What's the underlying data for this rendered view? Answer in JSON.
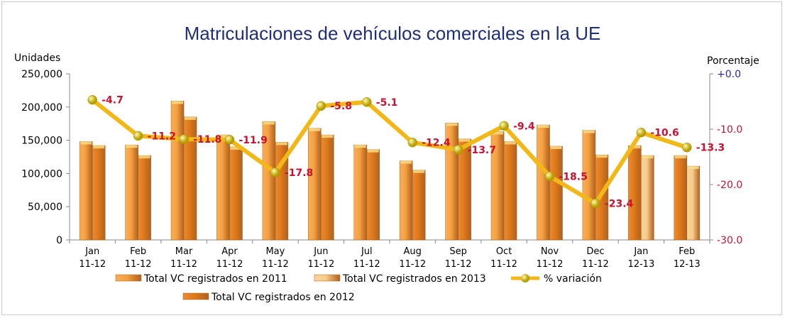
{
  "chart_data": {
    "type": "bar",
    "title": "Matriculaciones de vehículos comerciales en la UE",
    "ylabel": "Unidades",
    "y2label": "Porcentaje",
    "ylim": [
      0,
      250000
    ],
    "y2lim": [
      -30,
      0
    ],
    "yticks": [
      "0",
      "50,000",
      "100,000",
      "150,000",
      "200,000",
      "250,000"
    ],
    "y2ticks": [
      "-30.0",
      "-20.0",
      "-10.0",
      "+0.0"
    ],
    "categories": [
      [
        "Jan",
        "11-12"
      ],
      [
        "Feb",
        "11-12"
      ],
      [
        "Mar",
        "11-12"
      ],
      [
        "Apr",
        "11-12"
      ],
      [
        "May",
        "11-12"
      ],
      [
        "Jun",
        "11-12"
      ],
      [
        "Jul",
        "11-12"
      ],
      [
        "Aug",
        "11-12"
      ],
      [
        "Sep",
        "11-12"
      ],
      [
        "Oct",
        "11-12"
      ],
      [
        "Nov",
        "11-12"
      ],
      [
        "Dec",
        "11-12"
      ],
      [
        "Jan",
        "12-13"
      ],
      [
        "Feb",
        "12-13"
      ]
    ],
    "series": [
      {
        "name": "Total VC registrados en 2011",
        "kind": "bar",
        "color": "#f5a040",
        "values": [
          148000,
          143000,
          209000,
          158000,
          178000,
          168000,
          143000,
          119000,
          176000,
          163000,
          173000,
          165000,
          null,
          null
        ]
      },
      {
        "name": "Total VC registrados en 2012",
        "kind": "bar",
        "color": "#e07818",
        "values": [
          142000,
          127000,
          185000,
          140000,
          147000,
          158000,
          136000,
          105000,
          152000,
          148000,
          141000,
          128000,
          142000,
          127000
        ]
      },
      {
        "name": "Total VC registrados en 2013",
        "kind": "bar",
        "color": "#f8cc8c",
        "values": [
          null,
          null,
          null,
          null,
          null,
          null,
          null,
          null,
          null,
          null,
          null,
          null,
          127000,
          111000
        ]
      },
      {
        "name": "% variación",
        "kind": "line",
        "axis": "right",
        "color": "#f2b818",
        "values": [
          -4.7,
          -11.2,
          -11.8,
          -11.9,
          -17.8,
          -5.8,
          -5.1,
          -12.4,
          -13.7,
          -9.4,
          -18.5,
          -23.4,
          -10.6,
          -13.3
        ],
        "labels": [
          "-4.7",
          "-11.2",
          "-11.8",
          "-11.9",
          "-17.8",
          "-5.8",
          "-5.1",
          "-12.4",
          "-13.7",
          "-9.4",
          "-18.5",
          "-23.4",
          "-10.6",
          "-13.3"
        ]
      }
    ],
    "legend_position": "bottom",
    "colors": {
      "title": "#1f2f7a",
      "data_label": "#cc1030",
      "right_axis_top": "#3322aa",
      "right_axis": "#cc1030"
    }
  }
}
